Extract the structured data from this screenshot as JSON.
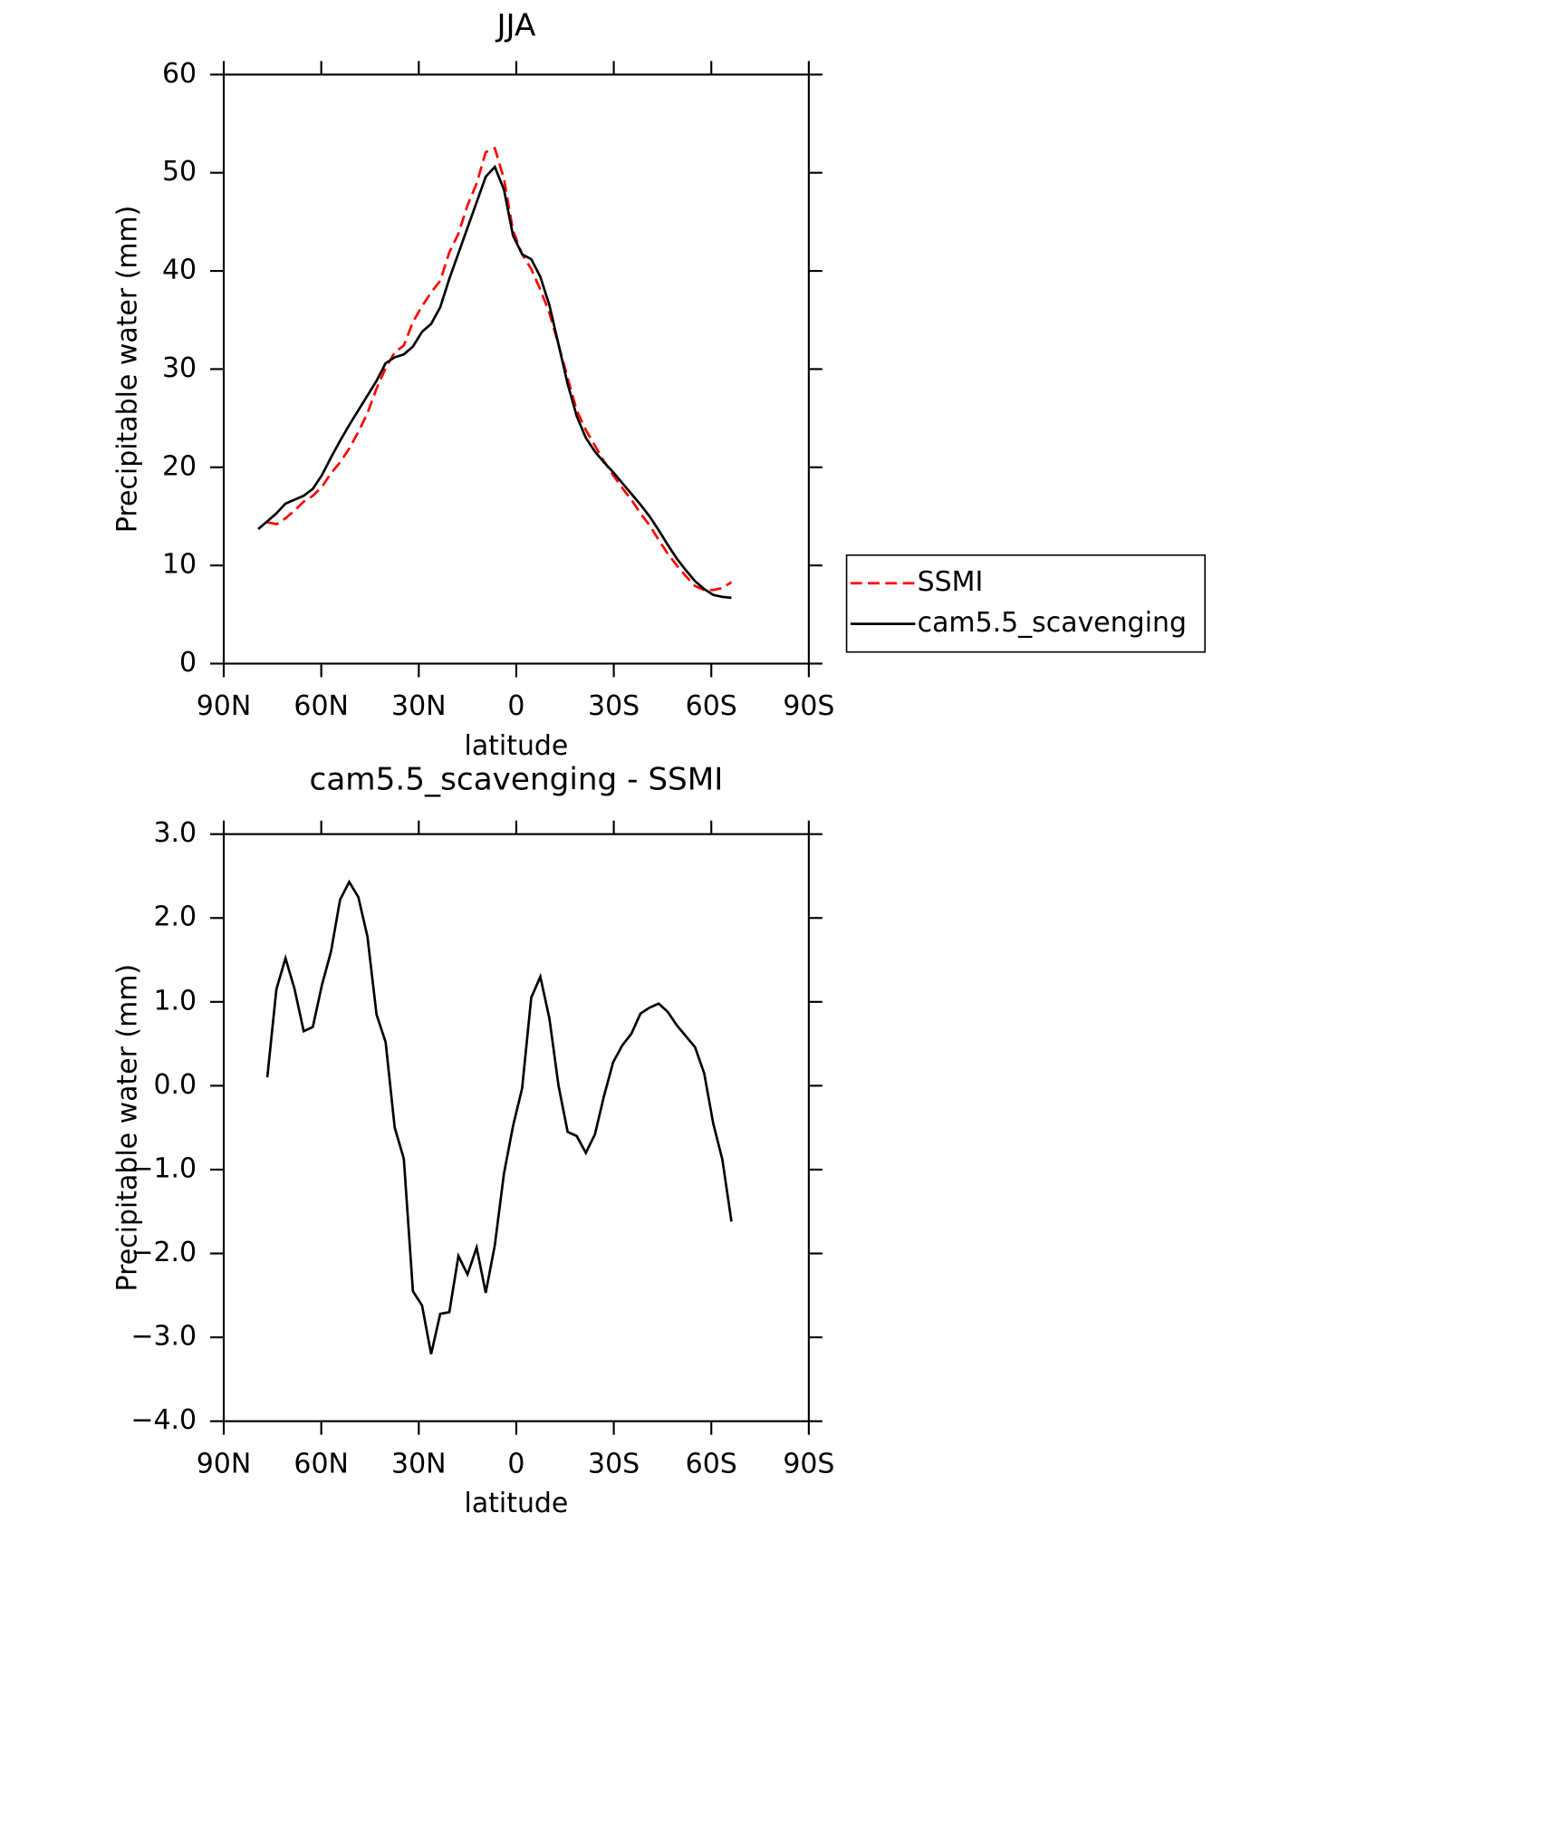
{
  "chart_data": [
    {
      "type": "line",
      "title": "JJA",
      "x_label": "latitude",
      "y_label": "Precipitable water (mm)",
      "x": [
        79.4,
        76.6,
        73.8,
        71.0,
        68.2,
        65.4,
        62.6,
        59.8,
        57.0,
        54.2,
        51.4,
        48.6,
        45.8,
        43.0,
        40.2,
        37.4,
        34.6,
        31.8,
        29.0,
        26.2,
        23.4,
        20.6,
        17.8,
        15.0,
        12.2,
        9.4,
        6.6,
        3.8,
        1.0,
        -1.8,
        -4.6,
        -7.4,
        -10.2,
        -13.0,
        -15.8,
        -18.6,
        -21.4,
        -24.2,
        -27.0,
        -29.8,
        -32.6,
        -35.4,
        -38.2,
        -41.0,
        -43.8,
        -46.6,
        -49.4,
        -52.2,
        -55.0,
        -57.8,
        -60.6,
        -63.4,
        -66.2
      ],
      "series": [
        {
          "name": "SSMI",
          "color": "#ff0000",
          "line_style": "dashed",
          "values": [
            null,
            14.4,
            14.2,
            14.8,
            15.6,
            16.5,
            17.1,
            18.0,
            19.4,
            20.5,
            21.9,
            23.6,
            25.5,
            28.0,
            30.1,
            31.7,
            32.4,
            34.8,
            36.4,
            37.8,
            39.0,
            41.9,
            43.8,
            46.7,
            48.9,
            52.1,
            52.5,
            49.4,
            44.1,
            41.7,
            40.2,
            38.1,
            35.7,
            32.5,
            29.1,
            25.8,
            23.8,
            22.2,
            20.6,
            19.2,
            17.9,
            16.7,
            15.3,
            14.1,
            12.6,
            11.2,
            10.0,
            8.9,
            7.9,
            7.5,
            7.5,
            7.7,
            8.3
          ]
        },
        {
          "name": "cam5.5_scavenging",
          "color": "#000000",
          "line_style": "solid",
          "values": [
            13.7,
            14.5,
            15.3,
            16.3,
            16.7,
            17.1,
            17.8,
            19.2,
            21.0,
            22.7,
            24.3,
            25.8,
            27.3,
            28.8,
            30.6,
            31.2,
            31.5,
            32.3,
            33.8,
            34.6,
            36.3,
            39.2,
            41.8,
            44.4,
            47.0,
            49.6,
            50.6,
            48.3,
            43.6,
            41.7,
            41.2,
            39.4,
            36.5,
            32.5,
            28.5,
            25.2,
            23.0,
            21.6,
            20.5,
            19.5,
            18.4,
            17.3,
            16.2,
            15.0,
            13.6,
            12.1,
            10.7,
            9.5,
            8.4,
            7.6,
            7.0,
            6.8,
            6.7
          ]
        }
      ],
      "xlim": [
        90,
        -90
      ],
      "xticks": [
        {
          "value": 90,
          "label": "90N"
        },
        {
          "value": 60,
          "label": "60N"
        },
        {
          "value": 30,
          "label": "30N"
        },
        0,
        {
          "value": -30,
          "label": "30S"
        },
        {
          "value": -60,
          "label": "60S"
        },
        {
          "value": -90,
          "label": "90S"
        }
      ],
      "ylim": [
        0,
        60
      ],
      "yticks": [
        0,
        10,
        20,
        30,
        40,
        50,
        60
      ],
      "legend": "right"
    },
    {
      "type": "line",
      "title": "cam5.5_scavenging - SSMI",
      "x_label": "latitude",
      "y_label": "Precipitable water (mm)",
      "x": [
        76.6,
        73.8,
        71.0,
        68.2,
        65.4,
        62.6,
        59.8,
        57.0,
        54.2,
        51.4,
        48.6,
        45.8,
        43.0,
        40.2,
        37.4,
        34.6,
        31.8,
        29.0,
        26.2,
        23.4,
        20.6,
        17.8,
        15.0,
        12.2,
        9.4,
        6.6,
        3.8,
        1.0,
        -1.8,
        -4.6,
        -7.4,
        -10.2,
        -13.0,
        -15.8,
        -18.6,
        -21.4,
        -24.2,
        -27.0,
        -29.8,
        -32.6,
        -35.4,
        -38.2,
        -41.0,
        -43.8,
        -46.6,
        -49.4,
        -52.2,
        -55.0,
        -57.8,
        -60.6,
        -63.4,
        -66.2
      ],
      "series": [
        {
          "color": "#000000",
          "line_style": "solid",
          "values": [
            0.1,
            1.15,
            1.52,
            1.15,
            0.65,
            0.7,
            1.2,
            1.6,
            2.22,
            2.43,
            2.25,
            1.78,
            0.85,
            0.52,
            -0.5,
            -0.87,
            -2.45,
            -2.62,
            -3.2,
            -2.72,
            -2.7,
            -2.03,
            -2.25,
            -1.93,
            -2.47,
            -1.9,
            -1.05,
            -0.48,
            -0.03,
            1.05,
            1.3,
            0.8,
            0.0,
            -0.55,
            -0.6,
            -0.8,
            -0.58,
            -0.12,
            0.28,
            0.48,
            0.62,
            0.86,
            0.93,
            0.98,
            0.88,
            0.72,
            0.59,
            0.46,
            0.15,
            -0.45,
            -0.88,
            -1.62
          ]
        }
      ],
      "xlim": [
        90,
        -90
      ],
      "xticks": [
        {
          "value": 90,
          "label": "90N"
        },
        {
          "value": 60,
          "label": "60N"
        },
        {
          "value": 30,
          "label": "30N"
        },
        0,
        {
          "value": -30,
          "label": "30S"
        },
        {
          "value": -60,
          "label": "60S"
        },
        {
          "value": -90,
          "label": "90S"
        }
      ],
      "ylim": [
        -4,
        3
      ],
      "yticks": [
        {
          "value": -4,
          "label": "−4.0"
        },
        {
          "value": -3,
          "label": "−3.0"
        },
        {
          "value": -2,
          "label": "−2.0"
        },
        {
          "value": -1,
          "label": "−1.0"
        },
        {
          "value": 0,
          "label": "0.0"
        },
        {
          "value": 1,
          "label": "1.0"
        },
        {
          "value": 2,
          "label": "2.0"
        },
        {
          "value": 3,
          "label": "3.0"
        }
      ]
    }
  ]
}
